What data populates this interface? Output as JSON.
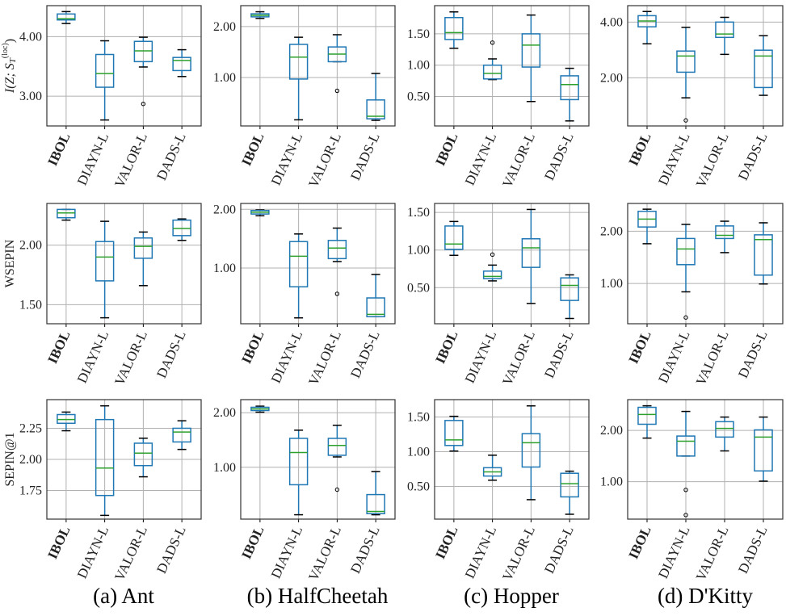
{
  "captions": [
    "(a) Ant",
    "(b) HalfCheetah",
    "(c) Hopper",
    "(d) D'Kitty"
  ],
  "colors": {
    "box": "#1f77b4",
    "median": "#2ca02c",
    "whisker_cap": "#000000",
    "grid": "#b0b0b0",
    "flier": "#000000"
  },
  "chart_data": [
    {
      "type": "box",
      "environment": "Ant",
      "ylabel": "I(Z; S_T^(loc))",
      "ylim": [
        2.5,
        4.52
      ],
      "yticks": [
        3.0,
        4.0
      ],
      "ytick_labels": [
        "3.00",
        "4.00"
      ],
      "grid": true,
      "categories": [
        "IBOL",
        "DIAYN-L",
        "VALOR-L",
        "DADS-L"
      ],
      "boxes": [
        {
          "whislo": 4.22,
          "q1": 4.28,
          "med": 4.3,
          "q3": 4.38,
          "whishi": 4.42,
          "fliers": []
        },
        {
          "whislo": 2.6,
          "q1": 3.15,
          "med": 3.38,
          "q3": 3.7,
          "whishi": 3.93,
          "fliers": []
        },
        {
          "whislo": 3.49,
          "q1": 3.58,
          "med": 3.76,
          "q3": 3.92,
          "whishi": 3.99,
          "fliers": [
            2.87
          ]
        },
        {
          "whislo": 3.33,
          "q1": 3.43,
          "med": 3.6,
          "q3": 3.65,
          "whishi": 3.78,
          "fliers": []
        }
      ]
    },
    {
      "type": "box",
      "environment": "HalfCheetah",
      "ylabel": "",
      "ylim": [
        0.05,
        2.41
      ],
      "yticks": [
        1.0,
        2.0
      ],
      "ytick_labels": [
        "1.00",
        "2.00"
      ],
      "grid": true,
      "categories": [
        "IBOL",
        "DIAYN-L",
        "VALOR-L",
        "DADS-L"
      ],
      "boxes": [
        {
          "whislo": 2.16,
          "q1": 2.19,
          "med": 2.22,
          "q3": 2.25,
          "whishi": 2.29,
          "fliers": []
        },
        {
          "whislo": 0.17,
          "q1": 0.97,
          "med": 1.4,
          "q3": 1.65,
          "whishi": 1.79,
          "fliers": []
        },
        {
          "whislo": 1.31,
          "q1": 1.31,
          "med": 1.46,
          "q3": 1.6,
          "whishi": 1.84,
          "fliers": [
            0.74
          ]
        },
        {
          "whislo": 0.16,
          "q1": 0.19,
          "med": 0.24,
          "q3": 0.56,
          "whishi": 1.08,
          "fliers": []
        }
      ]
    },
    {
      "type": "box",
      "environment": "Hopper",
      "ylabel": "",
      "ylim": [
        0.03,
        1.95
      ],
      "yticks": [
        0.5,
        1.0,
        1.5
      ],
      "ytick_labels": [
        "0.50",
        "1.00",
        "1.50"
      ],
      "grid": true,
      "categories": [
        "IBOL",
        "DIAYN-L",
        "VALOR-L",
        "DADS-L"
      ],
      "boxes": [
        {
          "whislo": 1.27,
          "q1": 1.41,
          "med": 1.52,
          "q3": 1.76,
          "whishi": 1.85,
          "fliers": []
        },
        {
          "whislo": 0.77,
          "q1": 0.78,
          "med": 0.87,
          "q3": 1.0,
          "whishi": 1.1,
          "fliers": [
            1.36
          ]
        },
        {
          "whislo": 0.42,
          "q1": 0.97,
          "med": 1.32,
          "q3": 1.5,
          "whishi": 1.8,
          "fliers": []
        },
        {
          "whislo": 0.11,
          "q1": 0.45,
          "med": 0.69,
          "q3": 0.83,
          "whishi": 0.95,
          "fliers": []
        }
      ]
    },
    {
      "type": "box",
      "environment": "D'Kitty",
      "ylabel": "",
      "ylim": [
        0.27,
        4.59
      ],
      "yticks": [
        2.0,
        4.0
      ],
      "ytick_labels": [
        "2.00",
        "4.00"
      ],
      "grid": true,
      "categories": [
        "IBOL",
        "DIAYN-L",
        "VALOR-L",
        "DADS-L"
      ],
      "boxes": [
        {
          "whislo": 3.22,
          "q1": 3.83,
          "med": 4.04,
          "q3": 4.23,
          "whishi": 4.38,
          "fliers": []
        },
        {
          "whislo": 1.28,
          "q1": 2.2,
          "med": 2.78,
          "q3": 2.96,
          "whishi": 3.81,
          "fliers": [
            0.47
          ]
        },
        {
          "whislo": 2.84,
          "q1": 3.45,
          "med": 3.57,
          "q3": 4.0,
          "whishi": 4.17,
          "fliers": []
        },
        {
          "whislo": 1.37,
          "q1": 1.65,
          "med": 2.78,
          "q3": 2.99,
          "whishi": 3.51,
          "fliers": []
        }
      ]
    },
    {
      "type": "box",
      "environment": "Ant",
      "ylabel": "WSEPIN",
      "ylim": [
        1.34,
        2.35
      ],
      "yticks": [
        1.5,
        2.0
      ],
      "ytick_labels": [
        "1.50",
        "2.00"
      ],
      "grid": true,
      "categories": [
        "IBOL",
        "DIAYN-L",
        "VALOR-L",
        "DADS-L"
      ],
      "boxes": [
        {
          "whislo": 2.21,
          "q1": 2.23,
          "med": 2.27,
          "q3": 2.3,
          "whishi": 2.3,
          "fliers": []
        },
        {
          "whislo": 1.39,
          "q1": 1.7,
          "med": 1.9,
          "q3": 2.03,
          "whishi": 2.2,
          "fliers": []
        },
        {
          "whislo": 1.66,
          "q1": 1.89,
          "med": 1.99,
          "q3": 2.06,
          "whishi": 2.11,
          "fliers": []
        },
        {
          "whislo": 2.04,
          "q1": 2.08,
          "med": 2.14,
          "q3": 2.21,
          "whishi": 2.22,
          "fliers": []
        }
      ]
    },
    {
      "type": "box",
      "environment": "HalfCheetah",
      "ylabel": "",
      "ylim": [
        0.05,
        2.1
      ],
      "yticks": [
        1.0,
        2.0
      ],
      "ytick_labels": [
        "1.00",
        "2.00"
      ],
      "grid": true,
      "categories": [
        "IBOL",
        "DIAYN-L",
        "VALOR-L",
        "DADS-L"
      ],
      "boxes": [
        {
          "whislo": 1.89,
          "q1": 1.92,
          "med": 1.95,
          "q3": 1.98,
          "whishi": 1.99,
          "fliers": []
        },
        {
          "whislo": 0.15,
          "q1": 0.68,
          "med": 1.2,
          "q3": 1.45,
          "whishi": 1.58,
          "fliers": []
        },
        {
          "whislo": 1.11,
          "q1": 1.16,
          "med": 1.34,
          "q3": 1.47,
          "whishi": 1.68,
          "fliers": [
            0.56
          ]
        },
        {
          "whislo": 0.17,
          "q1": 0.17,
          "med": 0.21,
          "q3": 0.49,
          "whishi": 0.89,
          "fliers": []
        }
      ]
    },
    {
      "type": "box",
      "environment": "Hopper",
      "ylabel": "",
      "ylim": [
        0.02,
        1.62
      ],
      "yticks": [
        0.5,
        1.0,
        1.5
      ],
      "ytick_labels": [
        "0.50",
        "1.00",
        "1.50"
      ],
      "grid": true,
      "categories": [
        "IBOL",
        "DIAYN-L",
        "VALOR-L",
        "DADS-L"
      ],
      "boxes": [
        {
          "whislo": 0.93,
          "q1": 1.01,
          "med": 1.08,
          "q3": 1.32,
          "whishi": 1.38,
          "fliers": []
        },
        {
          "whislo": 0.59,
          "q1": 0.62,
          "med": 0.65,
          "q3": 0.72,
          "whishi": 0.8,
          "fliers": [
            0.94
          ]
        },
        {
          "whislo": 0.29,
          "q1": 0.77,
          "med": 1.03,
          "q3": 1.15,
          "whishi": 1.54,
          "fliers": []
        },
        {
          "whislo": 0.09,
          "q1": 0.33,
          "med": 0.53,
          "q3": 0.63,
          "whishi": 0.67,
          "fliers": []
        }
      ]
    },
    {
      "type": "box",
      "environment": "D'Kitty",
      "ylabel": "",
      "ylim": [
        0.23,
        2.53
      ],
      "yticks": [
        1.0,
        2.0
      ],
      "ytick_labels": [
        "1.00",
        "2.00"
      ],
      "grid": true,
      "categories": [
        "IBOL",
        "DIAYN-L",
        "VALOR-L",
        "DADS-L"
      ],
      "boxes": [
        {
          "whislo": 1.76,
          "q1": 2.08,
          "med": 2.23,
          "q3": 2.38,
          "whishi": 2.42,
          "fliers": []
        },
        {
          "whislo": 0.84,
          "q1": 1.36,
          "med": 1.66,
          "q3": 1.86,
          "whishi": 2.13,
          "fliers": [
            0.35
          ]
        },
        {
          "whislo": 1.59,
          "q1": 1.86,
          "med": 1.92,
          "q3": 2.1,
          "whishi": 2.19,
          "fliers": []
        },
        {
          "whislo": 0.99,
          "q1": 1.16,
          "med": 1.84,
          "q3": 1.93,
          "whishi": 2.16,
          "fliers": []
        }
      ]
    },
    {
      "type": "box",
      "environment": "Ant",
      "ylabel": "SEPIN@1",
      "ylim": [
        1.52,
        2.48
      ],
      "yticks": [
        1.75,
        2.0,
        2.25
      ],
      "ytick_labels": [
        "1.75",
        "2.00",
        "2.25"
      ],
      "grid": true,
      "categories": [
        "IBOL",
        "DIAYN-L",
        "VALOR-L",
        "DADS-L"
      ],
      "boxes": [
        {
          "whislo": 2.23,
          "q1": 2.29,
          "med": 2.32,
          "q3": 2.36,
          "whishi": 2.38,
          "fliers": []
        },
        {
          "whislo": 1.55,
          "q1": 1.71,
          "med": 1.93,
          "q3": 2.32,
          "whishi": 2.43,
          "fliers": []
        },
        {
          "whislo": 1.86,
          "q1": 1.95,
          "med": 2.05,
          "q3": 2.13,
          "whishi": 2.17,
          "fliers": []
        },
        {
          "whislo": 2.08,
          "q1": 2.14,
          "med": 2.22,
          "q3": 2.25,
          "whishi": 2.31,
          "fliers": []
        }
      ]
    },
    {
      "type": "box",
      "environment": "HalfCheetah",
      "ylabel": "",
      "ylim": [
        0.05,
        2.24
      ],
      "yticks": [
        1.0,
        2.0
      ],
      "ytick_labels": [
        "1.00",
        "2.00"
      ],
      "grid": true,
      "categories": [
        "IBOL",
        "DIAYN-L",
        "VALOR-L",
        "DADS-L"
      ],
      "boxes": [
        {
          "whislo": 2.01,
          "q1": 2.04,
          "med": 2.07,
          "q3": 2.1,
          "whishi": 2.12,
          "fliers": []
        },
        {
          "whislo": 0.13,
          "q1": 0.68,
          "med": 1.27,
          "q3": 1.53,
          "whishi": 1.68,
          "fliers": []
        },
        {
          "whislo": 1.19,
          "q1": 1.22,
          "med": 1.4,
          "q3": 1.53,
          "whishi": 1.77,
          "fliers": [
            0.59
          ]
        },
        {
          "whislo": 0.13,
          "q1": 0.15,
          "med": 0.19,
          "q3": 0.5,
          "whishi": 0.92,
          "fliers": []
        }
      ]
    },
    {
      "type": "box",
      "environment": "Hopper",
      "ylabel": "",
      "ylim": [
        0.03,
        1.75
      ],
      "yticks": [
        0.5,
        1.0,
        1.5
      ],
      "ytick_labels": [
        "0.50",
        "1.00",
        "1.50"
      ],
      "grid": true,
      "categories": [
        "IBOL",
        "DIAYN-L",
        "VALOR-L",
        "DADS-L"
      ],
      "boxes": [
        {
          "whislo": 1.01,
          "q1": 1.09,
          "med": 1.17,
          "q3": 1.45,
          "whishi": 1.51,
          "fliers": []
        },
        {
          "whislo": 0.59,
          "q1": 0.65,
          "med": 0.71,
          "q3": 0.77,
          "whishi": 0.95,
          "fliers": []
        },
        {
          "whislo": 0.31,
          "q1": 0.78,
          "med": 1.13,
          "q3": 1.26,
          "whishi": 1.66,
          "fliers": []
        },
        {
          "whislo": 0.1,
          "q1": 0.35,
          "med": 0.54,
          "q3": 0.69,
          "whishi": 0.72,
          "fliers": []
        }
      ]
    },
    {
      "type": "box",
      "environment": "D'Kitty",
      "ylabel": "",
      "ylim": [
        0.27,
        2.6
      ],
      "yticks": [
        1.0,
        2.0
      ],
      "ytick_labels": [
        "1.00",
        "2.00"
      ],
      "grid": true,
      "categories": [
        "IBOL",
        "DIAYN-L",
        "VALOR-L",
        "DADS-L"
      ],
      "boxes": [
        {
          "whislo": 1.85,
          "q1": 2.12,
          "med": 2.31,
          "q3": 2.45,
          "whishi": 2.48,
          "fliers": []
        },
        {
          "whislo": 1.5,
          "q1": 1.5,
          "med": 1.79,
          "q3": 1.89,
          "whishi": 2.37,
          "fliers": [
            0.84,
            0.35
          ]
        },
        {
          "whislo": 1.6,
          "q1": 1.87,
          "med": 2.04,
          "q3": 2.17,
          "whishi": 2.26,
          "fliers": []
        },
        {
          "whislo": 1.01,
          "q1": 1.21,
          "med": 1.87,
          "q3": 2.01,
          "whishi": 2.26,
          "fliers": []
        }
      ]
    }
  ]
}
